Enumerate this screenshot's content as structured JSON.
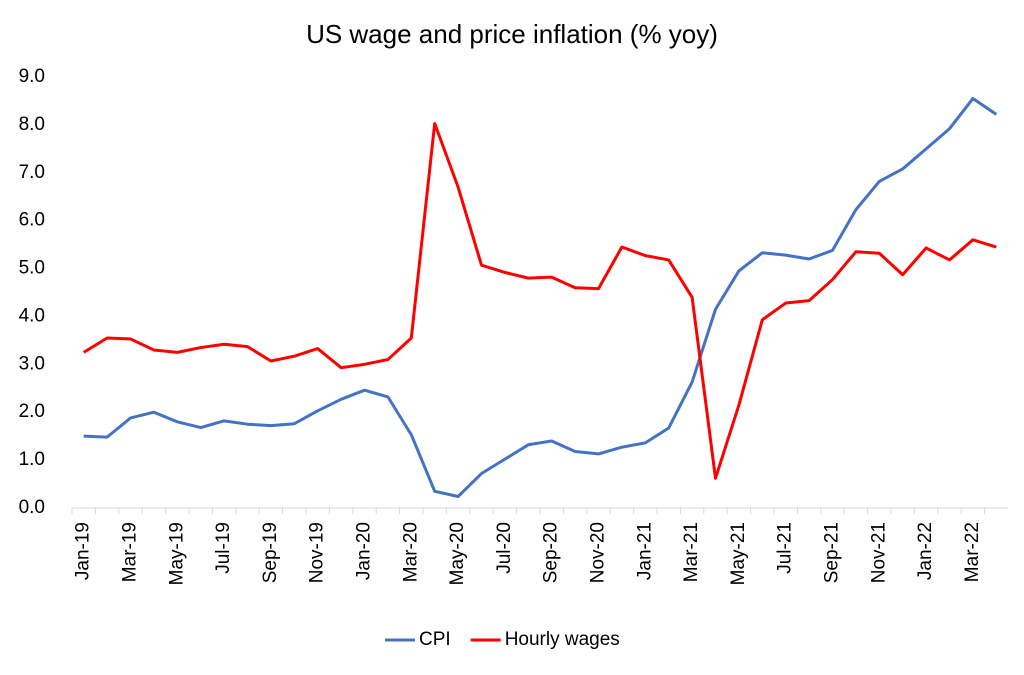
{
  "chart_data": {
    "type": "line",
    "title": "US wage and price inflation (% yoy)",
    "categories": [
      "Jan-19",
      null,
      "Mar-19",
      null,
      "May-19",
      null,
      "Jul-19",
      null,
      "Sep-19",
      null,
      "Nov-19",
      null,
      "Jan-20",
      null,
      "Mar-20",
      null,
      "May-20",
      null,
      "Jul-20",
      null,
      "Sep-20",
      null,
      "Nov-20",
      null,
      "Jan-21",
      null,
      "Mar-21",
      null,
      "May-21",
      null,
      "Jul-21",
      null,
      "Sep-21",
      null,
      "Nov-21",
      null,
      "Jan-22",
      null,
      "Mar-22",
      null
    ],
    "series": [
      {
        "name": "CPI",
        "color": "#4472c4",
        "values": [
          1.5,
          1.48,
          1.88,
          2.0,
          1.8,
          1.68,
          1.82,
          1.75,
          1.72,
          1.76,
          2.03,
          2.27,
          2.46,
          2.32,
          1.53,
          0.35,
          0.24,
          0.72,
          1.02,
          1.32,
          1.4,
          1.18,
          1.13,
          1.27,
          1.36,
          1.67,
          2.63,
          4.15,
          4.95,
          5.33,
          5.28,
          5.2,
          5.38,
          6.23,
          6.82,
          7.08,
          7.5,
          7.92,
          8.55,
          8.22
        ]
      },
      {
        "name": "Hourly wages",
        "color": "#ff0000",
        "values": [
          3.25,
          3.55,
          3.53,
          3.3,
          3.25,
          3.35,
          3.42,
          3.37,
          3.07,
          3.17,
          3.33,
          2.93,
          3.0,
          3.1,
          3.55,
          8.03,
          6.7,
          5.07,
          4.92,
          4.8,
          4.82,
          4.6,
          4.58,
          5.45,
          5.27,
          5.18,
          4.4,
          0.62,
          2.15,
          3.93,
          4.28,
          4.33,
          4.77,
          5.35,
          5.32,
          4.87,
          5.43,
          5.18,
          5.6,
          5.45
        ]
      }
    ],
    "ylim": [
      0,
      9
    ],
    "yticks": [
      {
        "value": 0,
        "label": "0.0"
      },
      {
        "value": 1,
        "label": "1.0"
      },
      {
        "value": 2,
        "label": "2.0"
      },
      {
        "value": 3,
        "label": "3.0"
      },
      {
        "value": 4,
        "label": "4.0"
      },
      {
        "value": 5,
        "label": "5.0"
      },
      {
        "value": 6,
        "label": "6.0"
      },
      {
        "value": 7,
        "label": "7.0"
      },
      {
        "value": 8,
        "label": "8.0"
      },
      {
        "value": 9,
        "label": "9.0"
      }
    ],
    "grid": false,
    "legend": "bottom"
  }
}
